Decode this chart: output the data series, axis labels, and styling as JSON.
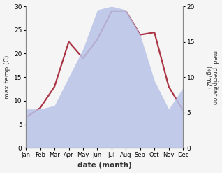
{
  "months": [
    "Jan",
    "Feb",
    "Mar",
    "Apr",
    "May",
    "Jun",
    "Jul",
    "Aug",
    "Sep",
    "Oct",
    "Nov",
    "Dec"
  ],
  "temp": [
    6.5,
    8.5,
    13.0,
    22.5,
    19.0,
    23.0,
    29.0,
    29.0,
    24.0,
    24.5,
    13.0,
    8.0
  ],
  "precip": [
    5.5,
    5.5,
    6.0,
    10.0,
    14.0,
    19.5,
    20.0,
    19.5,
    16.0,
    9.5,
    5.5,
    8.5
  ],
  "temp_color": "#aa3344",
  "precip_color": "#b8c4e8",
  "temp_ylim": [
    0,
    30
  ],
  "precip_ylim": [
    0,
    20
  ],
  "xlabel": "date (month)",
  "ylabel_left": "max temp (C)",
  "ylabel_right": "med. precipitation\n(kg/m2)",
  "temp_linewidth": 1.6,
  "bg_color": "#f0f0f0",
  "spine_color": "#888888"
}
